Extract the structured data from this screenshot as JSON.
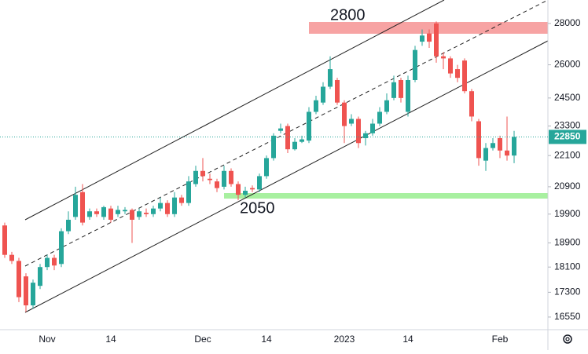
{
  "chart_data": {
    "type": "candlestick",
    "categories": [
      null,
      null,
      null,
      null,
      null,
      null,
      "Nov",
      null,
      null,
      null,
      null,
      null,
      null,
      null,
      null,
      "14",
      null,
      null,
      null,
      null,
      null,
      null,
      null,
      null,
      null,
      null,
      null,
      null,
      "Dec",
      null,
      null,
      null,
      null,
      null,
      null,
      null,
      null,
      "14",
      null,
      null,
      null,
      null,
      null,
      null,
      null,
      null,
      null,
      null,
      "2023",
      null,
      null,
      null,
      null,
      null,
      null,
      null,
      null,
      "14",
      null,
      null,
      null,
      null,
      null,
      null,
      null,
      null,
      null,
      null,
      null,
      null,
      "Feb",
      null,
      null
    ],
    "open": [
      19500,
      18500,
      18300,
      17800,
      16900,
      17500,
      18100,
      18400,
      18200,
      19300,
      19800,
      20700,
      19800,
      20000,
      19800,
      20100,
      19900,
      20000,
      20050,
      19800,
      19950,
      19900,
      20100,
      20300,
      19900,
      20500,
      20300,
      21000,
      21500,
      21200,
      21100,
      20900,
      21500,
      21000,
      20600,
      20850,
      20800,
      21300,
      22000,
      23100,
      23300,
      22350,
      22650,
      22700,
      23900,
      24300,
      25000,
      25300,
      24300,
      23400,
      23600,
      22800,
      23000,
      23400,
      23900,
      24500,
      25300,
      23900,
      25300,
      27100,
      27500,
      28000,
      26400,
      26300,
      25800,
      26200,
      24800,
      23500,
      21900,
      22400,
      22800,
      22300,
      22100
    ],
    "high": [
      19600,
      18600,
      18400,
      17900,
      17700,
      18200,
      18500,
      18500,
      19400,
      20000,
      20900,
      21000,
      20100,
      20100,
      20200,
      20200,
      20200,
      20150,
      20100,
      20100,
      20100,
      20200,
      20500,
      20400,
      20700,
      20600,
      21300,
      21700,
      22000,
      21400,
      21200,
      21700,
      21600,
      21100,
      20900,
      20950,
      21400,
      22100,
      23000,
      23400,
      23400,
      22800,
      22900,
      24100,
      24600,
      25200,
      26400,
      25400,
      24400,
      23800,
      23700,
      23100,
      23600,
      24100,
      24700,
      25500,
      25400,
      25500,
      26900,
      27700,
      27700,
      28100,
      26600,
      26400,
      26000,
      26300,
      24900,
      23600,
      22600,
      22800,
      22900,
      23700,
      23100
    ],
    "low": [
      18400,
      18200,
      17000,
      16700,
      16800,
      17400,
      18000,
      18000,
      18100,
      19200,
      19700,
      19500,
      19700,
      19800,
      19700,
      19600,
      19800,
      19900,
      18900,
      19700,
      19800,
      19800,
      20000,
      19800,
      19800,
      20200,
      20200,
      20900,
      21100,
      21000,
      20700,
      20800,
      20900,
      20400,
      20500,
      20700,
      20700,
      21200,
      21900,
      23000,
      22200,
      22300,
      22600,
      22600,
      23800,
      24200,
      24900,
      24200,
      22600,
      23300,
      22400,
      22500,
      22900,
      23300,
      23800,
      24400,
      24300,
      23700,
      25200,
      26900,
      26800,
      26100,
      25800,
      25400,
      25200,
      24700,
      23500,
      21700,
      21500,
      22300,
      22000,
      21900,
      21800
    ],
    "close": [
      18500,
      18300,
      17150,
      16900,
      17600,
      18100,
      18400,
      18150,
      19300,
      19700,
      20600,
      19600,
      20000,
      19900,
      20150,
      19700,
      20050,
      20050,
      19700,
      20000,
      19900,
      20100,
      20300,
      19900,
      20500,
      20300,
      21100,
      21500,
      21300,
      21150,
      20850,
      21500,
      21000,
      20600,
      20750,
      20800,
      21300,
      22000,
      22900,
      23200,
      22350,
      22650,
      22750,
      23900,
      24400,
      25000,
      25800,
      24300,
      23300,
      23600,
      22600,
      23000,
      23400,
      23900,
      24400,
      25200,
      24500,
      25300,
      26700,
      27400,
      27100,
      26400,
      26300,
      25600,
      25400,
      24800,
      23700,
      22000,
      22400,
      22600,
      22300,
      22100,
      22850
    ],
    "ylim": [
      16180,
      29200
    ],
    "yticks": [
      16550,
      17300,
      18100,
      18900,
      19900,
      20900,
      22100,
      23300,
      24500,
      26000,
      28000
    ],
    "log_scale": true,
    "up_color": "#26a69a",
    "down_color": "#ef5350",
    "last_price": 22850,
    "annotations": [
      "2800",
      "2050"
    ]
  }
}
